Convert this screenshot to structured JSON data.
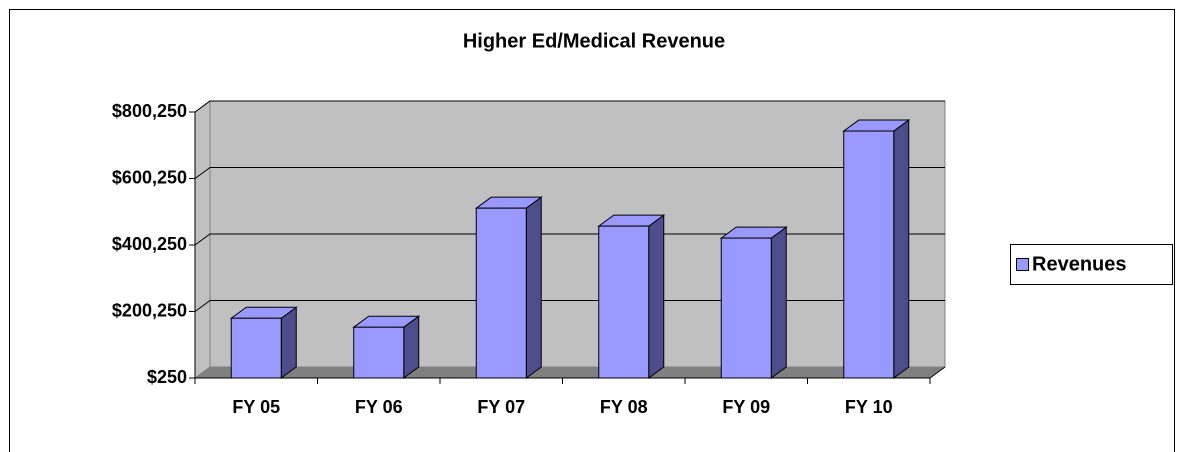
{
  "chart_data": {
    "type": "bar",
    "title": "Higher Ed/Medical Revenue",
    "categories": [
      "FY 05",
      "FY 06",
      "FY 07",
      "FY 08",
      "FY 09",
      "FY 10"
    ],
    "series": [
      {
        "name": "Revenues",
        "color": "#9999ff",
        "values": [
          180000,
          153000,
          511000,
          457000,
          421000,
          743000
        ]
      }
    ],
    "ylim": [
      250,
      800250
    ],
    "yticks": [
      {
        "value": 250,
        "label": "$250"
      },
      {
        "value": 200250,
        "label": "$200,250"
      },
      {
        "value": 400250,
        "label": "$400,250"
      },
      {
        "value": 600250,
        "label": "$600,250"
      },
      {
        "value": 800250,
        "label": "$800,250"
      }
    ],
    "grid": true,
    "legend": "right"
  }
}
